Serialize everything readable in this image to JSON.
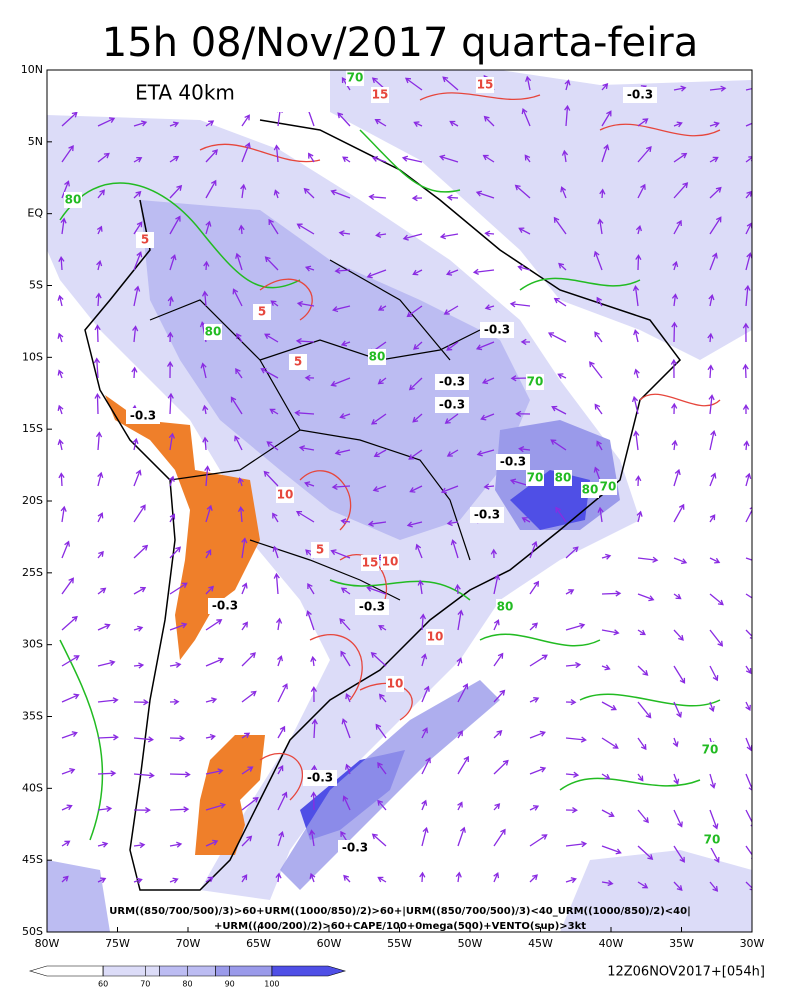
{
  "title": "15h 08/Nov/2017 quarta-feira",
  "model": "ETA 40km",
  "lat_labels": [
    "10N",
    "5N",
    "EQ",
    "5S",
    "10S",
    "15S",
    "20S",
    "25S",
    "30S",
    "35S",
    "40S",
    "45S",
    "50S"
  ],
  "lon_labels": [
    "80W",
    "75W",
    "70W",
    "65W",
    "60W",
    "55W",
    "50W",
    "45W",
    "40W",
    "35W",
    "30W"
  ],
  "formula": [
    "URM((850/700/500)/3)>60+URM((1000/850)/2)>60+|URM((850/700/500)/3)<40_URM((1000/850)/2)<40|",
    "+URM((400/200)/2)>60+CAPE/100+0mega(500)+VENTO(sup)>3kt"
  ],
  "colorbar": {
    "ticks": [
      60,
      70,
      80,
      90,
      100
    ],
    "colors": [
      "#ffffff",
      "#dcdcf8",
      "#bcbcf2",
      "#9a9aea",
      "#4f4fe6"
    ]
  },
  "run": "12Z06NOV2017+[054h]",
  "contour_labels": [
    "-0.3",
    "-0.3",
    "-0.3",
    "-0.3",
    "-0.3",
    "-0.3",
    "-0.3",
    "-0.3",
    "-0.3",
    "-0.3",
    "-0.3",
    "70",
    "70",
    "70",
    "70",
    "70",
    "70",
    "80",
    "80",
    "80",
    "80",
    "80",
    "80",
    "5",
    "5",
    "5",
    "5",
    "10",
    "10",
    "10",
    "10",
    "15",
    "15",
    "15"
  ]
}
